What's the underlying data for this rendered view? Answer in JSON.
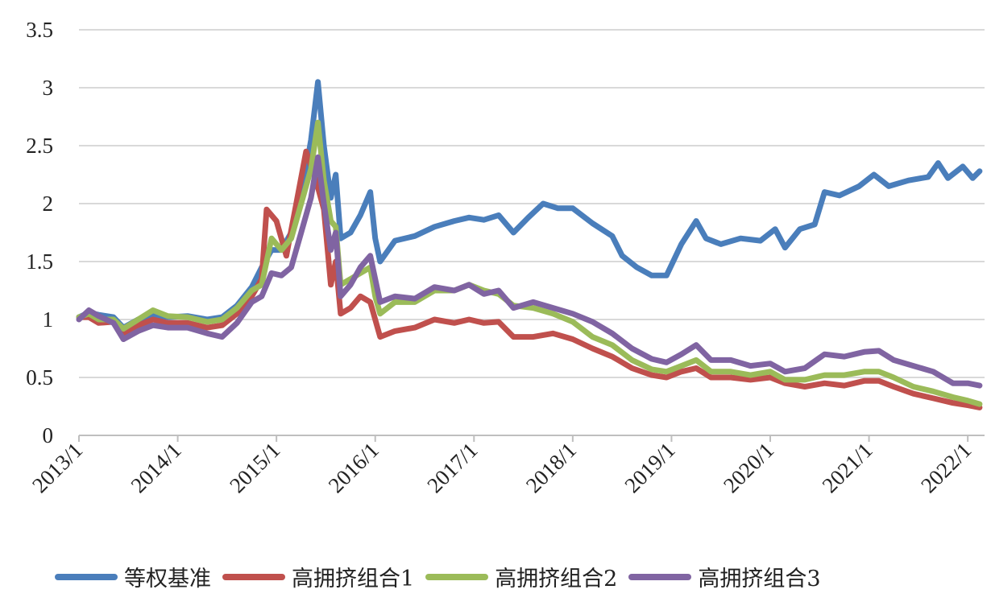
{
  "chart_data": {
    "type": "line",
    "title": "",
    "xlabel": "",
    "ylabel": "",
    "ylim": [
      0,
      3.5
    ],
    "yticks": [
      "0",
      "0.5",
      "1",
      "1.5",
      "2",
      "2.5",
      "3",
      "3.5"
    ],
    "xticks": [
      "2013/1",
      "2014/1",
      "2015/1",
      "2016/1",
      "2017/1",
      "2018/1",
      "2019/1",
      "2020/1",
      "2021/1",
      "2022/1"
    ],
    "grid": true,
    "legend_position": "bottom",
    "series": [
      {
        "name": "等权基准",
        "color": "#4a7ebb",
        "points": [
          [
            2013.0,
            1.02
          ],
          [
            2013.1,
            1.06
          ],
          [
            2013.2,
            1.04
          ],
          [
            2013.35,
            1.02
          ],
          [
            2013.45,
            0.93
          ],
          [
            2013.6,
            1.0
          ],
          [
            2013.75,
            1.04
          ],
          [
            2013.9,
            1.02
          ],
          [
            2014.1,
            1.03
          ],
          [
            2014.3,
            1.0
          ],
          [
            2014.45,
            1.02
          ],
          [
            2014.6,
            1.12
          ],
          [
            2014.75,
            1.28
          ],
          [
            2014.85,
            1.45
          ],
          [
            2014.95,
            1.6
          ],
          [
            2015.05,
            1.6
          ],
          [
            2015.15,
            1.75
          ],
          [
            2015.25,
            2.05
          ],
          [
            2015.35,
            2.55
          ],
          [
            2015.42,
            3.05
          ],
          [
            2015.48,
            2.5
          ],
          [
            2015.55,
            2.05
          ],
          [
            2015.6,
            2.25
          ],
          [
            2015.65,
            1.7
          ],
          [
            2015.75,
            1.75
          ],
          [
            2015.85,
            1.9
          ],
          [
            2015.95,
            2.1
          ],
          [
            2016.0,
            1.7
          ],
          [
            2016.05,
            1.5
          ],
          [
            2016.2,
            1.68
          ],
          [
            2016.4,
            1.72
          ],
          [
            2016.6,
            1.8
          ],
          [
            2016.8,
            1.85
          ],
          [
            2016.95,
            1.88
          ],
          [
            2017.1,
            1.86
          ],
          [
            2017.25,
            1.9
          ],
          [
            2017.4,
            1.75
          ],
          [
            2017.55,
            1.88
          ],
          [
            2017.7,
            2.0
          ],
          [
            2017.85,
            1.96
          ],
          [
            2018.0,
            1.96
          ],
          [
            2018.2,
            1.83
          ],
          [
            2018.4,
            1.72
          ],
          [
            2018.5,
            1.55
          ],
          [
            2018.65,
            1.45
          ],
          [
            2018.8,
            1.38
          ],
          [
            2018.95,
            1.38
          ],
          [
            2019.1,
            1.65
          ],
          [
            2019.25,
            1.85
          ],
          [
            2019.35,
            1.7
          ],
          [
            2019.5,
            1.65
          ],
          [
            2019.7,
            1.7
          ],
          [
            2019.9,
            1.68
          ],
          [
            2020.05,
            1.78
          ],
          [
            2020.15,
            1.62
          ],
          [
            2020.3,
            1.78
          ],
          [
            2020.45,
            1.82
          ],
          [
            2020.55,
            2.1
          ],
          [
            2020.7,
            2.07
          ],
          [
            2020.9,
            2.15
          ],
          [
            2021.05,
            2.25
          ],
          [
            2021.2,
            2.15
          ],
          [
            2021.4,
            2.2
          ],
          [
            2021.6,
            2.23
          ],
          [
            2021.7,
            2.35
          ],
          [
            2021.8,
            2.22
          ],
          [
            2021.95,
            2.32
          ],
          [
            2022.05,
            2.22
          ],
          [
            2022.12,
            2.28
          ]
        ]
      },
      {
        "name": "高拥挤组合1",
        "color": "#c0504d",
        "points": [
          [
            2013.0,
            1.02
          ],
          [
            2013.1,
            1.02
          ],
          [
            2013.2,
            0.97
          ],
          [
            2013.35,
            0.98
          ],
          [
            2013.45,
            0.88
          ],
          [
            2013.6,
            0.95
          ],
          [
            2013.75,
            1.0
          ],
          [
            2013.9,
            0.97
          ],
          [
            2014.1,
            0.97
          ],
          [
            2014.3,
            0.93
          ],
          [
            2014.45,
            0.95
          ],
          [
            2014.6,
            1.05
          ],
          [
            2014.75,
            1.2
          ],
          [
            2014.85,
            1.35
          ],
          [
            2014.9,
            1.95
          ],
          [
            2015.0,
            1.85
          ],
          [
            2015.1,
            1.55
          ],
          [
            2015.2,
            2.0
          ],
          [
            2015.3,
            2.45
          ],
          [
            2015.4,
            2.2
          ],
          [
            2015.48,
            1.95
          ],
          [
            2015.55,
            1.3
          ],
          [
            2015.6,
            1.5
          ],
          [
            2015.65,
            1.05
          ],
          [
            2015.75,
            1.1
          ],
          [
            2015.85,
            1.2
          ],
          [
            2015.95,
            1.15
          ],
          [
            2016.05,
            0.85
          ],
          [
            2016.2,
            0.9
          ],
          [
            2016.4,
            0.93
          ],
          [
            2016.6,
            1.0
          ],
          [
            2016.8,
            0.97
          ],
          [
            2016.95,
            1.0
          ],
          [
            2017.1,
            0.97
          ],
          [
            2017.25,
            0.98
          ],
          [
            2017.4,
            0.85
          ],
          [
            2017.6,
            0.85
          ],
          [
            2017.8,
            0.88
          ],
          [
            2018.0,
            0.83
          ],
          [
            2018.2,
            0.75
          ],
          [
            2018.4,
            0.68
          ],
          [
            2018.6,
            0.58
          ],
          [
            2018.8,
            0.52
          ],
          [
            2018.95,
            0.5
          ],
          [
            2019.1,
            0.55
          ],
          [
            2019.25,
            0.58
          ],
          [
            2019.4,
            0.5
          ],
          [
            2019.6,
            0.5
          ],
          [
            2019.8,
            0.48
          ],
          [
            2020.0,
            0.5
          ],
          [
            2020.15,
            0.45
          ],
          [
            2020.35,
            0.42
          ],
          [
            2020.55,
            0.45
          ],
          [
            2020.75,
            0.43
          ],
          [
            2020.95,
            0.47
          ],
          [
            2021.1,
            0.47
          ],
          [
            2021.25,
            0.42
          ],
          [
            2021.45,
            0.36
          ],
          [
            2021.65,
            0.32
          ],
          [
            2021.85,
            0.28
          ],
          [
            2022.0,
            0.26
          ],
          [
            2022.12,
            0.24
          ]
        ]
      },
      {
        "name": "高拥挤组合2",
        "color": "#9bbb59",
        "points": [
          [
            2013.0,
            1.02
          ],
          [
            2013.1,
            1.05
          ],
          [
            2013.2,
            1.0
          ],
          [
            2013.35,
            1.0
          ],
          [
            2013.45,
            0.92
          ],
          [
            2013.6,
            1.0
          ],
          [
            2013.75,
            1.08
          ],
          [
            2013.9,
            1.03
          ],
          [
            2014.1,
            1.02
          ],
          [
            2014.3,
            0.98
          ],
          [
            2014.45,
            1.0
          ],
          [
            2014.6,
            1.1
          ],
          [
            2014.75,
            1.25
          ],
          [
            2014.85,
            1.3
          ],
          [
            2014.95,
            1.7
          ],
          [
            2015.05,
            1.6
          ],
          [
            2015.15,
            1.7
          ],
          [
            2015.25,
            2.0
          ],
          [
            2015.35,
            2.3
          ],
          [
            2015.42,
            2.7
          ],
          [
            2015.48,
            2.2
          ],
          [
            2015.55,
            1.85
          ],
          [
            2015.6,
            1.8
          ],
          [
            2015.65,
            1.3
          ],
          [
            2015.75,
            1.35
          ],
          [
            2015.85,
            1.4
          ],
          [
            2015.95,
            1.45
          ],
          [
            2016.0,
            1.2
          ],
          [
            2016.05,
            1.05
          ],
          [
            2016.2,
            1.15
          ],
          [
            2016.4,
            1.15
          ],
          [
            2016.6,
            1.25
          ],
          [
            2016.8,
            1.25
          ],
          [
            2016.95,
            1.3
          ],
          [
            2017.1,
            1.25
          ],
          [
            2017.25,
            1.22
          ],
          [
            2017.4,
            1.12
          ],
          [
            2017.6,
            1.1
          ],
          [
            2017.8,
            1.05
          ],
          [
            2018.0,
            0.98
          ],
          [
            2018.2,
            0.85
          ],
          [
            2018.4,
            0.78
          ],
          [
            2018.6,
            0.65
          ],
          [
            2018.8,
            0.57
          ],
          [
            2018.95,
            0.55
          ],
          [
            2019.1,
            0.6
          ],
          [
            2019.25,
            0.65
          ],
          [
            2019.4,
            0.55
          ],
          [
            2019.6,
            0.55
          ],
          [
            2019.8,
            0.52
          ],
          [
            2020.0,
            0.55
          ],
          [
            2020.15,
            0.48
          ],
          [
            2020.35,
            0.48
          ],
          [
            2020.55,
            0.52
          ],
          [
            2020.75,
            0.52
          ],
          [
            2020.95,
            0.55
          ],
          [
            2021.1,
            0.55
          ],
          [
            2021.25,
            0.5
          ],
          [
            2021.45,
            0.42
          ],
          [
            2021.65,
            0.38
          ],
          [
            2021.85,
            0.33
          ],
          [
            2022.0,
            0.3
          ],
          [
            2022.12,
            0.27
          ]
        ]
      },
      {
        "name": "高拥挤组合3",
        "color": "#8064a2",
        "points": [
          [
            2013.0,
            1.0
          ],
          [
            2013.1,
            1.08
          ],
          [
            2013.2,
            1.03
          ],
          [
            2013.35,
            0.97
          ],
          [
            2013.45,
            0.83
          ],
          [
            2013.6,
            0.9
          ],
          [
            2013.75,
            0.95
          ],
          [
            2013.9,
            0.93
          ],
          [
            2014.1,
            0.93
          ],
          [
            2014.3,
            0.88
          ],
          [
            2014.45,
            0.85
          ],
          [
            2014.6,
            0.97
          ],
          [
            2014.75,
            1.15
          ],
          [
            2014.85,
            1.2
          ],
          [
            2014.95,
            1.4
          ],
          [
            2015.05,
            1.38
          ],
          [
            2015.15,
            1.45
          ],
          [
            2015.25,
            1.75
          ],
          [
            2015.35,
            2.05
          ],
          [
            2015.42,
            2.4
          ],
          [
            2015.48,
            2.0
          ],
          [
            2015.55,
            1.6
          ],
          [
            2015.6,
            1.75
          ],
          [
            2015.65,
            1.2
          ],
          [
            2015.75,
            1.3
          ],
          [
            2015.85,
            1.45
          ],
          [
            2015.95,
            1.55
          ],
          [
            2016.0,
            1.35
          ],
          [
            2016.05,
            1.15
          ],
          [
            2016.2,
            1.2
          ],
          [
            2016.4,
            1.18
          ],
          [
            2016.6,
            1.28
          ],
          [
            2016.8,
            1.25
          ],
          [
            2016.95,
            1.3
          ],
          [
            2017.1,
            1.22
          ],
          [
            2017.25,
            1.25
          ],
          [
            2017.4,
            1.1
          ],
          [
            2017.6,
            1.15
          ],
          [
            2017.8,
            1.1
          ],
          [
            2018.0,
            1.05
          ],
          [
            2018.2,
            0.98
          ],
          [
            2018.4,
            0.88
          ],
          [
            2018.6,
            0.75
          ],
          [
            2018.8,
            0.66
          ],
          [
            2018.95,
            0.63
          ],
          [
            2019.1,
            0.7
          ],
          [
            2019.25,
            0.78
          ],
          [
            2019.4,
            0.65
          ],
          [
            2019.6,
            0.65
          ],
          [
            2019.8,
            0.6
          ],
          [
            2020.0,
            0.62
          ],
          [
            2020.15,
            0.55
          ],
          [
            2020.35,
            0.58
          ],
          [
            2020.55,
            0.7
          ],
          [
            2020.75,
            0.68
          ],
          [
            2020.95,
            0.72
          ],
          [
            2021.1,
            0.73
          ],
          [
            2021.25,
            0.65
          ],
          [
            2021.45,
            0.6
          ],
          [
            2021.65,
            0.55
          ],
          [
            2021.85,
            0.45
          ],
          [
            2022.0,
            0.45
          ],
          [
            2022.12,
            0.43
          ]
        ]
      }
    ]
  }
}
